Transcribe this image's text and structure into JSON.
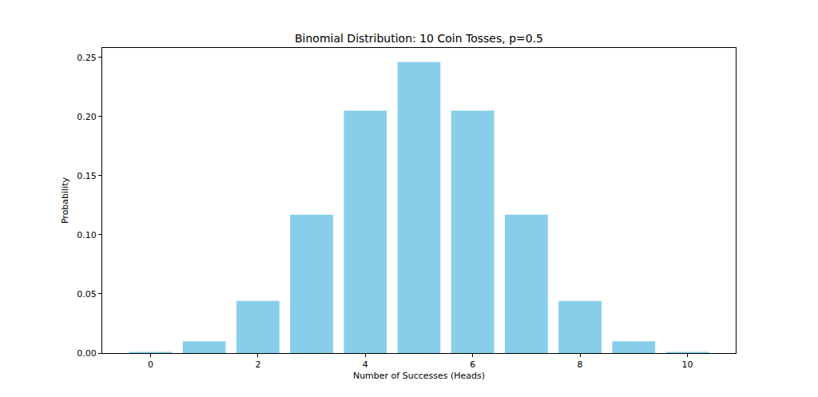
{
  "chart_data": {
    "type": "bar",
    "title": "Binomial Distribution: 10 Coin Tosses, p=0.5",
    "x_label": "Number of Successes (Heads)",
    "y_label": "Probability",
    "x": [
      0,
      1,
      2,
      3,
      4,
      5,
      6,
      7,
      8,
      9,
      10
    ],
    "values": [
      0.001,
      0.01,
      0.044,
      0.117,
      0.205,
      0.246,
      0.205,
      0.117,
      0.044,
      0.01,
      0.001
    ],
    "color": "#87ceeb",
    "xlim": [
      -0.9,
      10.9
    ],
    "xticks": [
      0,
      2,
      4,
      6,
      8,
      10
    ],
    "ylim": [
      0,
      0.258
    ],
    "yticks": [
      {
        "value": 0,
        "label": "0.00"
      },
      {
        "value": 0.05,
        "label": "0.05"
      },
      {
        "value": 0.1,
        "label": "0.10"
      },
      {
        "value": 0.15,
        "label": "0.15"
      },
      {
        "value": 0.2,
        "label": "0.20"
      },
      {
        "value": 0.25,
        "label": "0.25"
      }
    ],
    "grid": false
  }
}
